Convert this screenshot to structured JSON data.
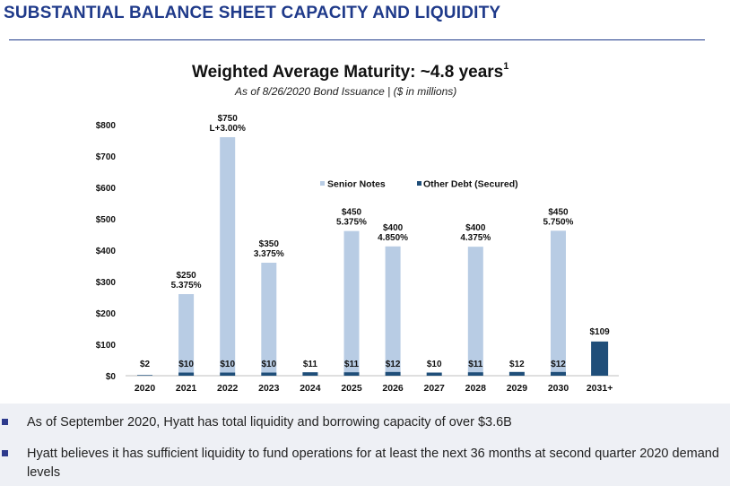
{
  "header": {
    "title": "SUBSTANTIAL BALANCE SHEET CAPACITY AND LIQUIDITY"
  },
  "colors": {
    "brand": "#1f3a8a",
    "senior_notes": "#b8cce4",
    "other_debt": "#1f4e79",
    "bullet_marker": "#2d3a8c",
    "footer_background": "#eef0f5"
  },
  "chart_data": {
    "type": "bar",
    "title": "Weighted Average Maturity: ~4.8 years",
    "title_footnote": "1",
    "subtitle": "As of 8/26/2020 Bond Issuance | ($ in millions)",
    "categories": [
      "2020",
      "2021",
      "2022",
      "2023",
      "2024",
      "2025",
      "2026",
      "2027",
      "2028",
      "2029",
      "2030",
      "2031+"
    ],
    "series": [
      {
        "name": "Senior Notes",
        "color": "#b8cce4",
        "values": [
          0,
          250,
          750,
          350,
          0,
          450,
          400,
          0,
          400,
          0,
          450,
          0
        ],
        "labels": [
          "",
          "$250",
          "$750",
          "$350",
          "",
          "$450",
          "$400",
          "",
          "$400",
          "",
          "$450",
          ""
        ],
        "rates": [
          "",
          "5.375%",
          "L+3.00%",
          "3.375%",
          "",
          "5.375%",
          "4.850%",
          "",
          "4.375%",
          "",
          "5.750%",
          ""
        ]
      },
      {
        "name": "Other Debt (Secured)",
        "color": "#1f4e79",
        "values": [
          2,
          10,
          10,
          10,
          11,
          11,
          12,
          10,
          11,
          12,
          12,
          109
        ],
        "labels": [
          "$2",
          "$10",
          "$10",
          "$10",
          "$11",
          "$11",
          "$12",
          "$10",
          "$11",
          "$12",
          "$12",
          "$109"
        ]
      }
    ],
    "y_ticks": [
      "$0",
      "$100",
      "$200",
      "$300",
      "$400",
      "$500",
      "$600",
      "$700",
      "$800"
    ],
    "ylim": [
      0,
      800
    ],
    "grid": false,
    "legend": "top-right"
  },
  "bullets": [
    "As of September 2020, Hyatt has total liquidity and borrowing capacity of over $3.6B",
    "Hyatt believes it has sufficient liquidity to fund operations for at least the next 36 months at second quarter 2020 demand levels"
  ]
}
